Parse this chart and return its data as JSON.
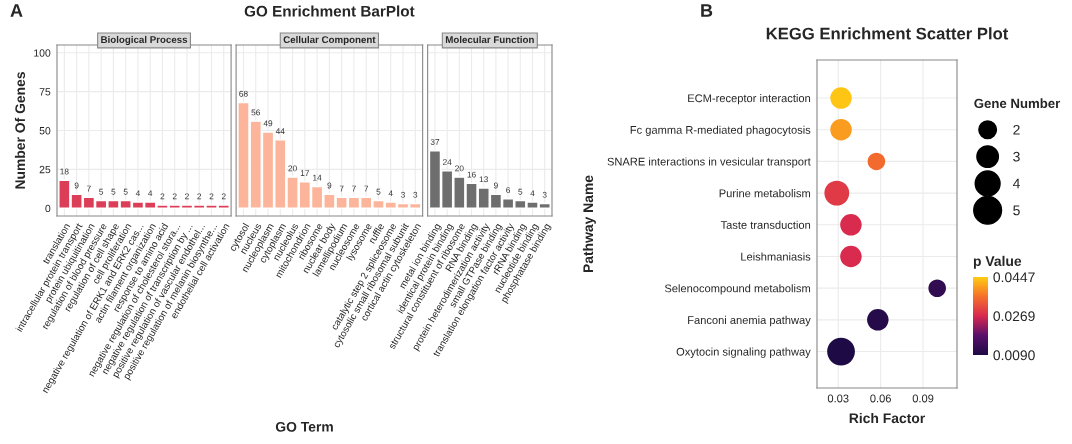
{
  "chart_data": [
    {
      "type": "bar",
      "subtitle": "Biological Process",
      "ylabel": "Number Of Genes",
      "annotations": [
        "A"
      ],
      "categories": [
        "translation",
        "intracellular protein transport",
        "protein ubiquitination",
        "regulation of blood pressure",
        "regulation of cell shape",
        "cell proliferation",
        "negative regulation of ERK1 and ERK2 cas...",
        "actin filament organization",
        "response to amino acid",
        "negative regulation of cholesterol stora...",
        "negative regulation of transcription by ...",
        "positive regulation of vascular endothel...",
        "positive regulation of melanin biosynthe...",
        "endothelial cell activation"
      ],
      "values": [
        18,
        9,
        7,
        5,
        5,
        5,
        4,
        4,
        2,
        2,
        2,
        2,
        2,
        2
      ],
      "color": "#dc3d57",
      "ylim": [
        -5,
        105
      ],
      "yticks": [
        0,
        25,
        50,
        75,
        100
      ],
      "grid": true,
      "data_labels": true
    },
    {
      "type": "bar",
      "title": "GO Enrichment BarPlot",
      "subtitle": "Cellular Component",
      "xlabel": "GO Term",
      "categories": [
        "cytosol",
        "nucleus",
        "nucleoplasm",
        "cytoplasm",
        "nucleolus",
        "mitochondrion",
        "ribosome",
        "nuclear body",
        "lamellipodium",
        "nucleosome",
        "lysosome",
        "ruffle",
        "catalytic step 2 spliceosome",
        "cytosolic small ribosomal subunit",
        "cortical actin cytoskeleton"
      ],
      "values": [
        68,
        56,
        49,
        44,
        20,
        17,
        14,
        9,
        7,
        7,
        7,
        5,
        4,
        3,
        3
      ],
      "color": "#fcb49a",
      "ylim": [
        -5,
        105
      ],
      "yticks": [
        0,
        25,
        50,
        75,
        100
      ],
      "grid": true,
      "data_labels": true,
      "tick_labels": "x"
    },
    {
      "type": "bar",
      "subtitle": "Molecular Function",
      "categories": [
        "metal ion binding",
        "identical protein binding",
        "structural constituent of ribosome",
        "RNA binding",
        "protein heterodimerization activity",
        "small GTPase binding",
        "translation elongation factor activity",
        "rRNA binding",
        "nucleotide binding",
        "phosphatase binding"
      ],
      "values": [
        37,
        24,
        20,
        16,
        13,
        9,
        6,
        5,
        4,
        3
      ],
      "color": "#6e6e6e",
      "ylim": [
        -5,
        105
      ],
      "yticks": [
        0,
        25,
        50,
        75,
        100
      ],
      "grid": true,
      "data_labels": true,
      "tick_labels": "x"
    },
    {
      "type": "bubble",
      "orientation": "horizontal",
      "title": "KEGG Enrichment Scatter Plot",
      "xlabel": "Rich Factor",
      "ylabel": "Pathway Name",
      "legend_title": "Gene Number",
      "clabel": "p Value",
      "annotations": [
        "B"
      ],
      "categories": [
        "ECM-receptor interaction",
        "Fc gamma R-mediated phagocytosis",
        "SNARE interactions in vesicular transport",
        "Purine metabolism",
        "Taste transduction",
        "Leishmaniasis",
        "Selenocompound metabolism",
        "Fanconi anemia pathway",
        "Oxytocin signaling pathway"
      ],
      "values": [
        0.032,
        0.032,
        0.057,
        0.029,
        0.039,
        0.039,
        0.1,
        0.058,
        0.032
      ],
      "sizes": [
        3,
        3,
        2,
        4,
        3,
        3,
        2,
        3,
        5
      ],
      "size_legend": [
        2,
        3,
        4,
        5
      ],
      "cvalues": [
        0.044,
        0.04,
        0.035,
        0.029,
        0.027,
        0.027,
        0.012,
        0.01,
        0.009
      ],
      "clim": [
        0.009,
        0.0447
      ],
      "cticks": [
        {
          "value": 0.009,
          "label": "0.0090"
        },
        0.0269,
        0.0447
      ],
      "xlim": [
        0.015,
        0.114
      ],
      "xticks": [
        0.03,
        0.06,
        0.09
      ],
      "grid": true
    }
  ]
}
